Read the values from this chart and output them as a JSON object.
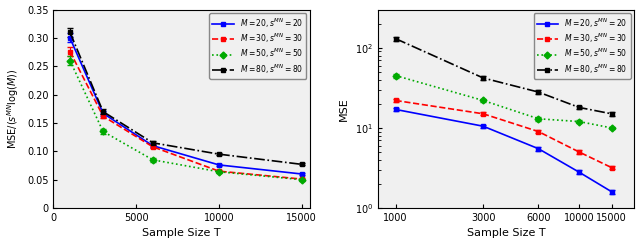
{
  "left": {
    "xlabel": "Sample Size T",
    "ylabel": "MSE/(s^{MN}log(M))",
    "xlim": [
      0,
      15500
    ],
    "ylim": [
      0,
      0.35
    ],
    "xticks": [
      0,
      5000,
      10000,
      15000
    ],
    "yticks": [
      0,
      0.05,
      0.1,
      0.15,
      0.2,
      0.25,
      0.3,
      0.35
    ],
    "series": [
      {
        "color": "#0000FF",
        "linestyle": "-",
        "marker": "s",
        "markersize": 3.5,
        "x": [
          1000,
          3000,
          6000,
          10000,
          15000
        ],
        "y": [
          0.3,
          0.167,
          0.11,
          0.076,
          0.06
        ],
        "yerr": [
          0.008,
          0.004,
          0.003,
          0.002,
          0.002
        ]
      },
      {
        "color": "#FF0000",
        "linestyle": "--",
        "marker": "s",
        "markersize": 3.5,
        "x": [
          1000,
          3000,
          6000,
          10000,
          15000
        ],
        "y": [
          0.276,
          0.162,
          0.108,
          0.065,
          0.051
        ],
        "yerr": [
          0.008,
          0.004,
          0.003,
          0.002,
          0.002
        ]
      },
      {
        "color": "#00AA00",
        "linestyle": ":",
        "marker": "D",
        "markersize": 3.5,
        "x": [
          1000,
          3000,
          6000,
          10000,
          15000
        ],
        "y": [
          0.26,
          0.135,
          0.085,
          0.064,
          0.05
        ],
        "yerr": [
          0.008,
          0.004,
          0.003,
          0.002,
          0.002
        ]
      },
      {
        "color": "#000000",
        "linestyle": "-.",
        "marker": "s",
        "markersize": 3.5,
        "x": [
          1000,
          3000,
          6000,
          10000,
          15000
        ],
        "y": [
          0.31,
          0.17,
          0.115,
          0.095,
          0.077
        ],
        "yerr": [
          0.008,
          0.004,
          0.003,
          0.002,
          0.002
        ]
      }
    ]
  },
  "right": {
    "xlabel": "Sample Size T",
    "ylabel": "MSE",
    "series": [
      {
        "color": "#0000FF",
        "linestyle": "-",
        "marker": "s",
        "markersize": 3.5,
        "x": [
          1000,
          3000,
          6000,
          10000,
          15000
        ],
        "y": [
          17.0,
          10.5,
          5.5,
          2.8,
          1.6
        ],
        "yerr": [
          0.8,
          0.4,
          0.3,
          0.15,
          0.1
        ]
      },
      {
        "color": "#FF0000",
        "linestyle": "--",
        "marker": "s",
        "markersize": 3.5,
        "x": [
          1000,
          3000,
          6000,
          10000,
          15000
        ],
        "y": [
          22.0,
          15.0,
          9.0,
          5.0,
          3.2
        ],
        "yerr": [
          1.0,
          0.6,
          0.4,
          0.25,
          0.15
        ]
      },
      {
        "color": "#00AA00",
        "linestyle": ":",
        "marker": "D",
        "markersize": 3.5,
        "x": [
          1000,
          3000,
          6000,
          10000,
          15000
        ],
        "y": [
          45.0,
          22.0,
          13.0,
          12.0,
          10.0
        ],
        "yerr": [
          2.5,
          1.2,
          0.7,
          0.5,
          0.4
        ]
      },
      {
        "color": "#000000",
        "linestyle": "-.",
        "marker": "s",
        "markersize": 3.5,
        "x": [
          1000,
          3000,
          6000,
          10000,
          15000
        ],
        "y": [
          130.0,
          42.0,
          28.0,
          18.0,
          15.0
        ],
        "yerr": [
          7.0,
          2.5,
          1.5,
          1.0,
          0.8
        ]
      }
    ]
  },
  "legend_labels": [
    "$M=20, s^{MN}=20$",
    "$M=30, s^{MN}=30$",
    "$M=50, s^{MN}=50$",
    "$M=80, s^{MN}=80$"
  ],
  "bg_color": "#F0F0F0"
}
